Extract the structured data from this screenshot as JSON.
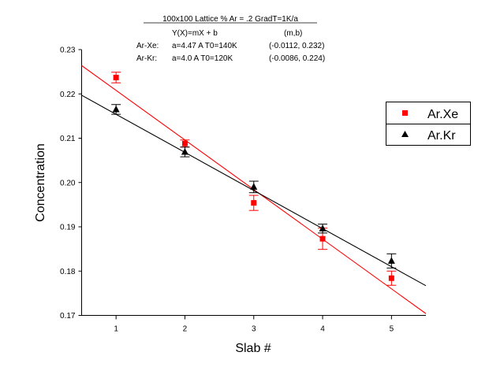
{
  "header": {
    "title": "100x100 Lattice   % Ar = .2   GradT=1K/a",
    "formula": "Y(X)=mX + b",
    "params_label": "(m,b)",
    "line1_name": "Ar-Xe:",
    "line1_params": "a=4.47 A   T0=140K",
    "line1_fit": "(-0.0112, 0.232)",
    "line2_name": "Ar-Kr:",
    "line2_params": "a=4.0  A   T0=120K",
    "line2_fit": "(-0.0086, 0.224)"
  },
  "chart_data": {
    "type": "scatter",
    "title": "100x100 Lattice   % Ar = .2   GradT=1K/a",
    "xlabel": "Slab #",
    "ylabel": "Concentration",
    "xlim": [
      0.5,
      5.5
    ],
    "ylim": [
      0.17,
      0.23
    ],
    "xticks": [
      1,
      2,
      3,
      4,
      5
    ],
    "yticks": [
      0.17,
      0.18,
      0.19,
      0.2,
      0.21,
      0.22,
      0.23
    ],
    "xtick_labels": [
      "1",
      "2",
      "3",
      "4",
      "5"
    ],
    "ytick_labels": [
      "0.17",
      "0.18",
      "0.19",
      "0.20",
      "0.21",
      "0.22",
      "0.23"
    ],
    "grid": false,
    "legend_position": "right",
    "series": [
      {
        "name": "Ar.Xe",
        "marker": "square",
        "color": "#ff0000",
        "x": [
          1,
          2,
          3,
          4,
          5
        ],
        "y": [
          0.2237,
          0.2088,
          0.1954,
          0.1873,
          0.1784
        ],
        "err": [
          0.0012,
          0.0008,
          0.0017,
          0.0024,
          0.0016
        ],
        "fit": {
          "m": -0.0112,
          "b": 0.232
        }
      },
      {
        "name": "Ar.Kr",
        "marker": "triangle",
        "color": "#000000",
        "x": [
          1,
          2,
          3,
          4,
          5
        ],
        "y": [
          0.2165,
          0.2069,
          0.199,
          0.1896,
          0.1823
        ],
        "err": [
          0.0011,
          0.0011,
          0.0013,
          0.001,
          0.0016
        ],
        "fit": {
          "m": -0.0086,
          "b": 0.224
        }
      }
    ]
  }
}
